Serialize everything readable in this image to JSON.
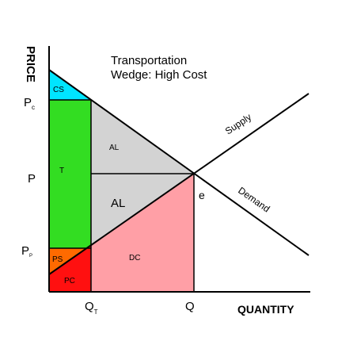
{
  "diagram": {
    "title": [
      "Transportation",
      "Wedge: High Cost"
    ],
    "y_axis_label": "PRICE",
    "x_axis_label": "QUANTITY",
    "price_levels": [
      {
        "main": "P",
        "sub": "c"
      },
      {
        "main": "P",
        "sub": ""
      },
      {
        "main": "P",
        "sub": "P"
      }
    ],
    "quantity_levels": [
      {
        "main": "Q",
        "sub": "T"
      },
      {
        "main": "Q",
        "sub": ""
      }
    ],
    "curves": {
      "supply": "Supply",
      "demand": "Demand"
    },
    "equilibrium": "e",
    "regions": {
      "cs": "CS",
      "t": "T",
      "al_small": "AL",
      "al_large": "AL",
      "dc": "DC",
      "ps": "PS",
      "pc": "PC"
    }
  }
}
